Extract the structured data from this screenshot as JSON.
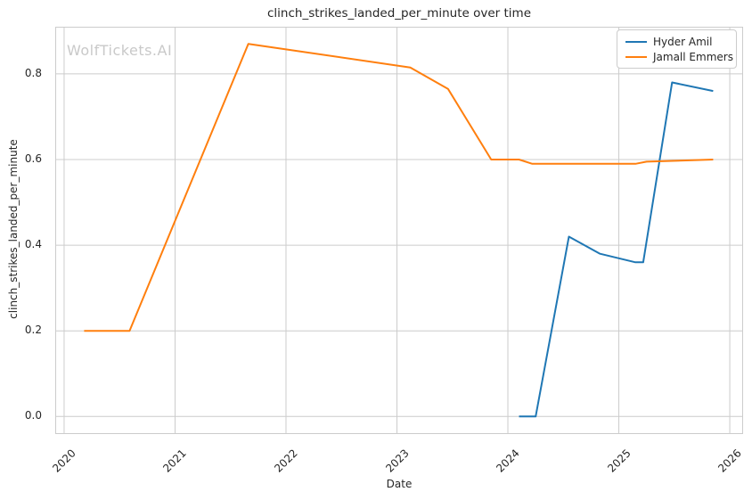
{
  "figure": {
    "watermark": "WolfTickets.AI"
  },
  "colors": {
    "series_hyder_amil": "#1f77b4",
    "series_jamall_emmers": "#ff7f0e",
    "grid": "#cccccc",
    "spine": "#cccccc",
    "text": "#262626",
    "watermark": "#c9c9c9",
    "background": "#ffffff"
  },
  "legend": {
    "items": [
      {
        "label": "Hyder Amil",
        "color": "#1f77b4"
      },
      {
        "label": "Jamall Emmers",
        "color": "#ff7f0e"
      }
    ]
  },
  "chart_data": {
    "type": "line",
    "title": "clinch_strikes_landed_per_minute over time",
    "xlabel": "Date",
    "ylabel": "clinch_strikes_landed_per_minute",
    "x_tick_labels": [
      "2020",
      "2021",
      "2022",
      "2023",
      "2024",
      "2025",
      "2026"
    ],
    "x_tick_values": [
      2020,
      2021,
      2022,
      2023,
      2024,
      2025,
      2026
    ],
    "y_tick_labels": [
      "0.0",
      "0.2",
      "0.4",
      "0.6",
      "0.8"
    ],
    "y_tick_values": [
      0.0,
      0.2,
      0.4,
      0.6,
      0.8
    ],
    "xlim": [
      2019.92,
      2026.12
    ],
    "ylim": [
      -0.041,
      0.91
    ],
    "grid": true,
    "legend_position": "upper right",
    "series": [
      {
        "name": "Hyder Amil",
        "color": "#1f77b4",
        "x": [
          2024.1,
          2024.25,
          2024.55,
          2024.83,
          2025.15,
          2025.22,
          2025.48,
          2025.85
        ],
        "y": [
          0.0,
          0.0,
          0.42,
          0.38,
          0.36,
          0.36,
          0.78,
          0.76
        ]
      },
      {
        "name": "Jamall Emmers",
        "color": "#ff7f0e",
        "x": [
          2020.18,
          2020.59,
          2021.66,
          2023.12,
          2023.46,
          2023.85,
          2024.1,
          2024.22,
          2025.15,
          2025.25,
          2025.85
        ],
        "y": [
          0.2,
          0.2,
          0.87,
          0.815,
          0.765,
          0.6,
          0.6,
          0.59,
          0.59,
          0.595,
          0.6
        ]
      }
    ]
  }
}
